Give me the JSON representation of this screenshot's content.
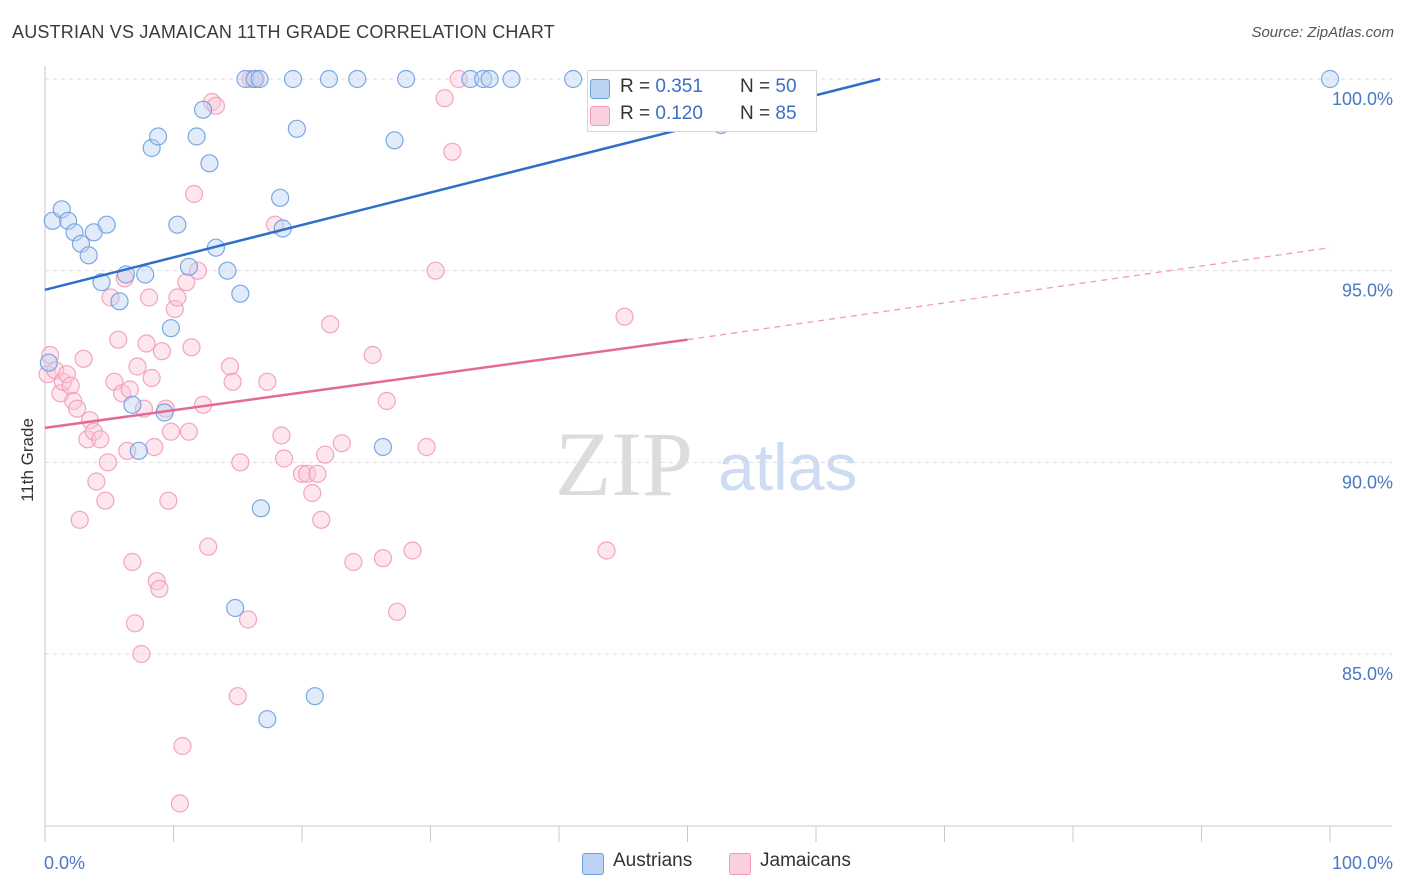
{
  "title": "AUSTRIAN VS JAMAICAN 11TH GRADE CORRELATION CHART",
  "source": "Source: ZipAtlas.com",
  "watermark": {
    "zip": "ZIP",
    "atlas": "atlas"
  },
  "legend": {
    "rows": [
      {
        "r_label": "R = ",
        "r_value": "0.351",
        "n_label": "N = ",
        "n_value": "50",
        "color": "#6e9fe0"
      },
      {
        "r_label": "R = ",
        "r_value": "0.120",
        "n_label": "N = ",
        "n_value": "85",
        "color": "#f29bb8"
      }
    ]
  },
  "bottom_legend": {
    "a": "Austrians",
    "b": "Jamaicans"
  },
  "chart_data": {
    "type": "scatter",
    "xlabel": "",
    "ylabel": "11th Grade",
    "xlim": [
      0,
      100
    ],
    "ylim": [
      80.5,
      100.5
    ],
    "x_tick_labels": [
      "0.0%",
      "100.0%"
    ],
    "y_ticks": [
      {
        "value": 85,
        "label": "85.0%"
      },
      {
        "value": 90,
        "label": "90.0%"
      },
      {
        "value": 95,
        "label": "95.0%"
      },
      {
        "value": 100,
        "label": "100.0%"
      }
    ],
    "grid": true,
    "series": [
      {
        "name": "Austrians",
        "color": "#6e9fe0",
        "trend": {
          "x0": 0,
          "y0": 94.5,
          "x1": 65,
          "y1": 100.0
        },
        "points": [
          [
            0.3,
            92.6
          ],
          [
            0.6,
            96.3
          ],
          [
            1.3,
            96.6
          ],
          [
            1.8,
            96.3
          ],
          [
            2.3,
            96.0
          ],
          [
            2.8,
            95.7
          ],
          [
            3.4,
            95.4
          ],
          [
            3.8,
            96.0
          ],
          [
            4.4,
            94.7
          ],
          [
            4.8,
            96.2
          ],
          [
            5.8,
            94.2
          ],
          [
            6.3,
            94.9
          ],
          [
            6.8,
            91.5
          ],
          [
            7.3,
            90.3
          ],
          [
            7.8,
            94.9
          ],
          [
            8.3,
            98.2
          ],
          [
            8.8,
            98.5
          ],
          [
            9.3,
            91.3
          ],
          [
            9.8,
            93.5
          ],
          [
            10.3,
            96.2
          ],
          [
            11.2,
            95.1
          ],
          [
            11.8,
            98.5
          ],
          [
            12.3,
            99.2
          ],
          [
            12.8,
            97.8
          ],
          [
            13.3,
            95.6
          ],
          [
            14.2,
            95.0
          ],
          [
            14.8,
            86.2
          ],
          [
            15.2,
            94.4
          ],
          [
            15.6,
            100.0
          ],
          [
            16.3,
            100.0
          ],
          [
            16.7,
            100.0
          ],
          [
            16.8,
            88.8
          ],
          [
            17.3,
            83.3
          ],
          [
            18.3,
            96.9
          ],
          [
            18.5,
            96.1
          ],
          [
            19.3,
            100.0
          ],
          [
            19.6,
            98.7
          ],
          [
            21.0,
            83.9
          ],
          [
            22.1,
            100.0
          ],
          [
            24.3,
            100.0
          ],
          [
            26.3,
            90.4
          ],
          [
            27.2,
            98.4
          ],
          [
            28.1,
            100.0
          ],
          [
            33.1,
            100.0
          ],
          [
            34.1,
            100.0
          ],
          [
            34.6,
            100.0
          ],
          [
            36.3,
            100.0
          ],
          [
            41.1,
            100.0
          ],
          [
            52.6,
            98.8
          ],
          [
            100.0,
            100.0
          ]
        ]
      },
      {
        "name": "Jamaicans",
        "color": "#f29bb8",
        "trend": {
          "x0": 0,
          "y0": 90.9,
          "x1": 50,
          "y1": 93.2,
          "x_dash_end": 100,
          "y_dash_end": 95.6
        },
        "points": [
          [
            0.2,
            92.3
          ],
          [
            0.4,
            92.8
          ],
          [
            0.8,
            92.4
          ],
          [
            1.2,
            91.8
          ],
          [
            1.4,
            92.1
          ],
          [
            1.7,
            92.3
          ],
          [
            2.0,
            92.0
          ],
          [
            2.2,
            91.6
          ],
          [
            2.5,
            91.4
          ],
          [
            2.7,
            88.5
          ],
          [
            3.0,
            92.7
          ],
          [
            3.3,
            90.6
          ],
          [
            3.5,
            91.1
          ],
          [
            3.8,
            90.8
          ],
          [
            4.0,
            89.5
          ],
          [
            4.3,
            90.6
          ],
          [
            4.7,
            89.0
          ],
          [
            4.9,
            90.0
          ],
          [
            5.1,
            94.3
          ],
          [
            5.4,
            92.1
          ],
          [
            5.7,
            93.2
          ],
          [
            6.0,
            91.8
          ],
          [
            6.2,
            94.8
          ],
          [
            6.4,
            90.3
          ],
          [
            6.6,
            91.9
          ],
          [
            6.8,
            87.4
          ],
          [
            7.0,
            85.8
          ],
          [
            7.2,
            92.5
          ],
          [
            7.5,
            85.0
          ],
          [
            7.7,
            91.4
          ],
          [
            7.9,
            93.1
          ],
          [
            8.1,
            94.3
          ],
          [
            8.3,
            92.2
          ],
          [
            8.5,
            90.4
          ],
          [
            8.7,
            86.9
          ],
          [
            8.9,
            86.7
          ],
          [
            9.1,
            92.9
          ],
          [
            9.4,
            91.4
          ],
          [
            9.6,
            89.0
          ],
          [
            9.8,
            90.8
          ],
          [
            10.1,
            94.0
          ],
          [
            10.3,
            94.3
          ],
          [
            10.5,
            81.1
          ],
          [
            10.7,
            82.6
          ],
          [
            11.0,
            94.7
          ],
          [
            11.2,
            90.8
          ],
          [
            11.4,
            93.0
          ],
          [
            11.6,
            97.0
          ],
          [
            11.9,
            95.0
          ],
          [
            12.3,
            91.5
          ],
          [
            12.7,
            87.8
          ],
          [
            13.0,
            99.4
          ],
          [
            13.3,
            99.3
          ],
          [
            14.4,
            92.5
          ],
          [
            14.6,
            92.1
          ],
          [
            15.0,
            83.9
          ],
          [
            15.2,
            90.0
          ],
          [
            15.8,
            85.9
          ],
          [
            16.0,
            100.0
          ],
          [
            16.4,
            100.0
          ],
          [
            17.3,
            92.1
          ],
          [
            17.9,
            96.2
          ],
          [
            18.4,
            90.7
          ],
          [
            18.6,
            90.1
          ],
          [
            20.0,
            89.7
          ],
          [
            20.4,
            89.7
          ],
          [
            20.8,
            89.2
          ],
          [
            21.2,
            89.7
          ],
          [
            21.5,
            88.5
          ],
          [
            21.8,
            90.2
          ],
          [
            22.2,
            93.6
          ],
          [
            23.1,
            90.5
          ],
          [
            24.0,
            87.4
          ],
          [
            25.5,
            92.8
          ],
          [
            26.3,
            87.5
          ],
          [
            26.6,
            91.6
          ],
          [
            27.4,
            86.1
          ],
          [
            28.6,
            87.7
          ],
          [
            29.7,
            90.4
          ],
          [
            30.4,
            95.0
          ],
          [
            31.1,
            99.5
          ],
          [
            31.7,
            98.1
          ],
          [
            32.2,
            100.0
          ],
          [
            43.7,
            87.7
          ],
          [
            45.1,
            93.8
          ]
        ]
      }
    ]
  }
}
